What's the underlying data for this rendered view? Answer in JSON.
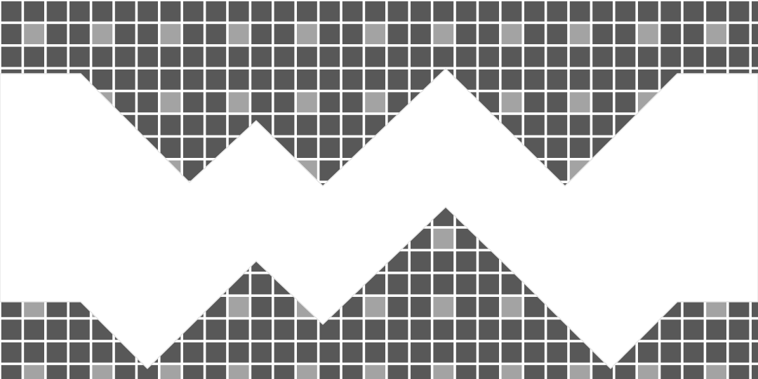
{
  "pattern": {
    "tile_color": "#585858",
    "accent_tile_color": "#a3a3a3",
    "grid_line_color": "#ffffff",
    "band_color": "#ffffff",
    "band_shape": "zigzag"
  }
}
